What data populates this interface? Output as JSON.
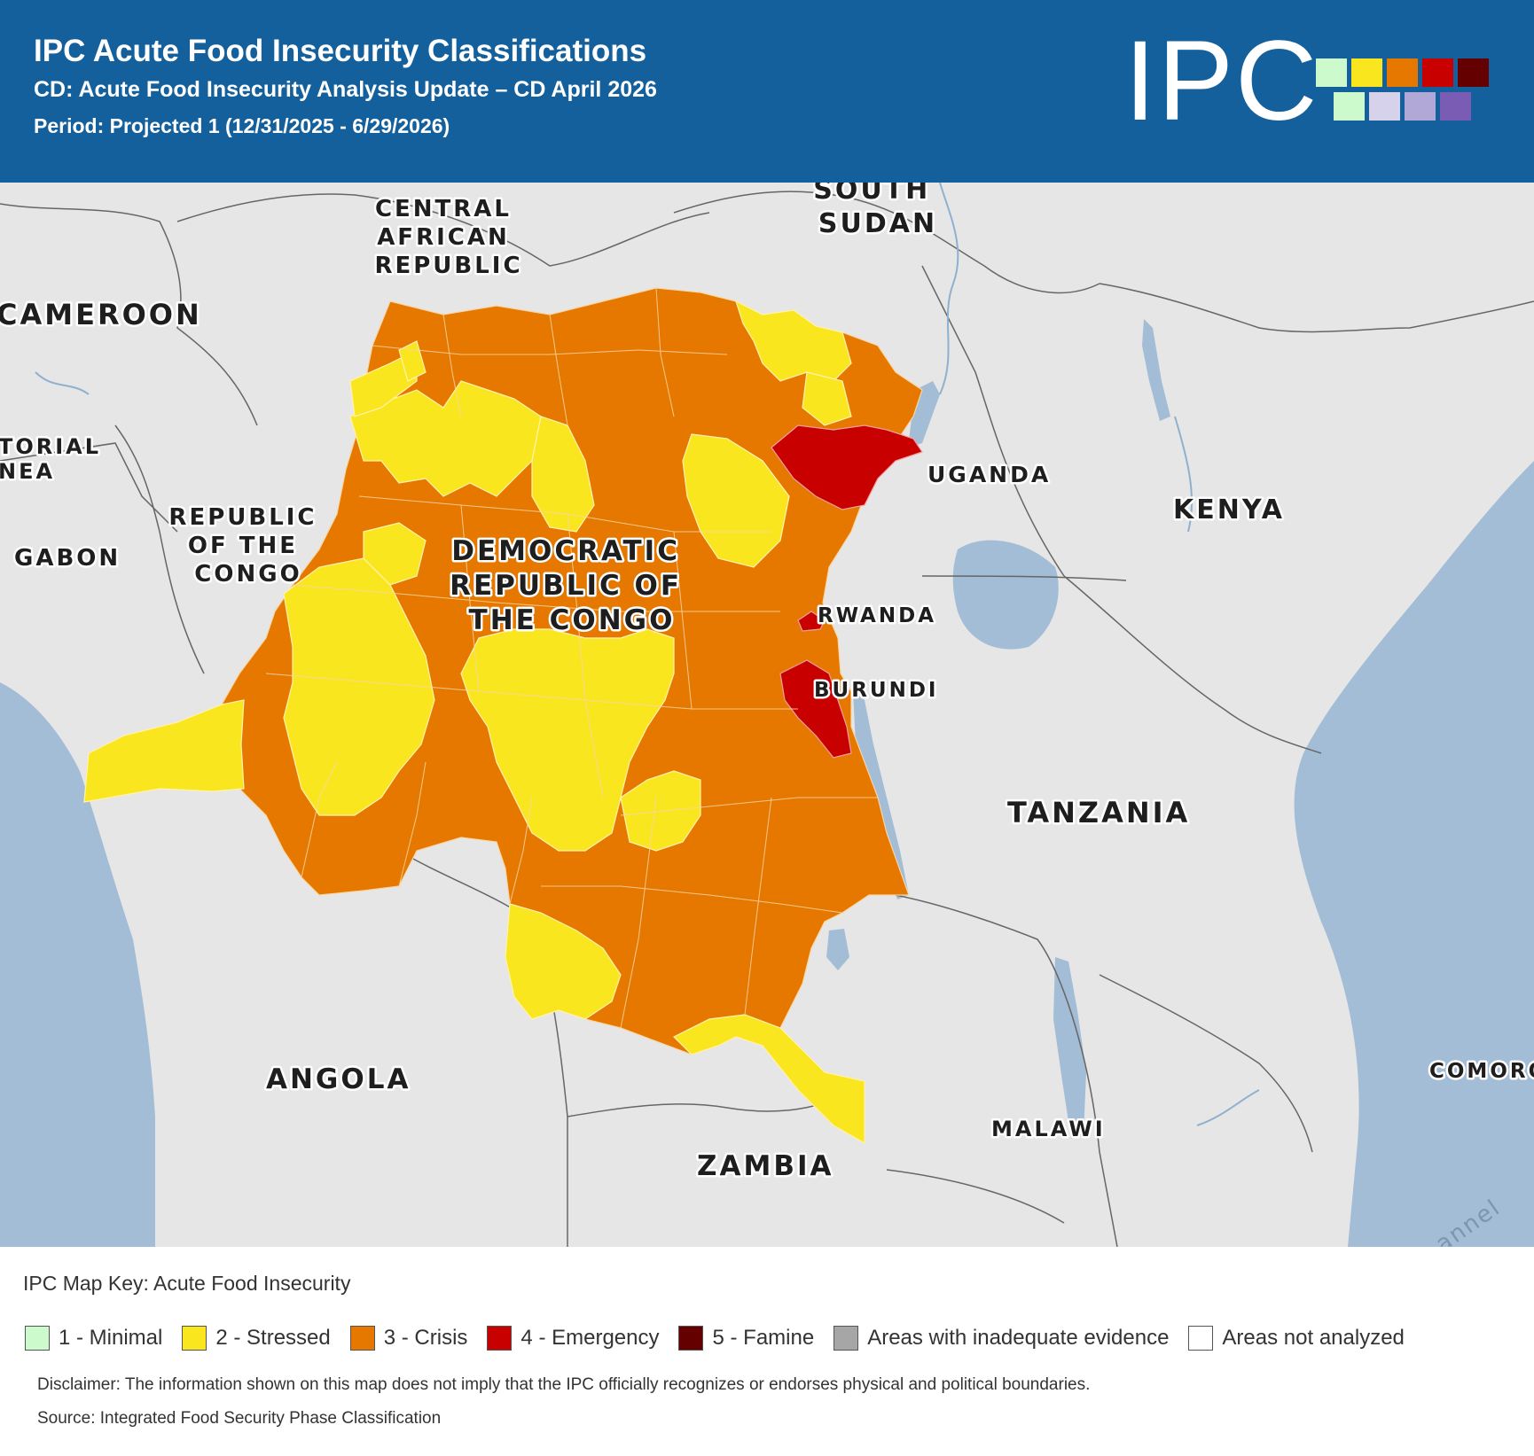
{
  "header": {
    "title": "IPC Acute Food Insecurity Classifications",
    "subtitle": "CD: Acute Food Insecurity Analysis Update – CD April 2026",
    "period": "Period: Projected 1 (12/31/2025 - 6/29/2026)",
    "logo_text": "IPC"
  },
  "colors": {
    "header_bg": "#14609c",
    "phase1": "#cdfacd",
    "phase2": "#fae61e",
    "phase3": "#e67800",
    "phase4": "#c80000",
    "phase5": "#640000",
    "inadequate": "#a6a6a6",
    "not_analyzed": "#ffffff",
    "land": "#e6e6e6",
    "water": "#a3bdd6"
  },
  "map": {
    "labels": {
      "central_african_republic": [
        "CENTRAL",
        "AFRICAN",
        "REPUBLIC"
      ],
      "south_sudan": [
        "SOUTH",
        "SUDAN"
      ],
      "cameroon": "CAMEROON",
      "equatorial_guinea": [
        "TORIAL",
        "NEA"
      ],
      "gabon": "GABON",
      "republic_of_congo": [
        "REPUBLIC",
        "OF THE",
        "CONGO"
      ],
      "drc": [
        "DEMOCRATIC",
        "REPUBLIC OF",
        "THE CONGO"
      ],
      "uganda": "UGANDA",
      "kenya": "KENYA",
      "rwanda": "RWANDA",
      "burundi": "BURUNDI",
      "tanzania": "TANZANIA",
      "angola": "ANGOLA",
      "zambia": "ZAMBIA",
      "malawi": "MALAWI",
      "comoros": "COMORO",
      "channel": "annel"
    }
  },
  "legend": {
    "title": "IPC Map Key: Acute Food Insecurity",
    "items": [
      {
        "label": "1 - Minimal",
        "color": "#cdfacd"
      },
      {
        "label": "2 - Stressed",
        "color": "#fae61e"
      },
      {
        "label": "3 - Crisis",
        "color": "#e67800"
      },
      {
        "label": "4 - Emergency",
        "color": "#c80000"
      },
      {
        "label": "5 - Famine",
        "color": "#640000"
      },
      {
        "label": "Areas with inadequate evidence",
        "color": "#a6a6a6"
      },
      {
        "label": "Areas not analyzed",
        "color": "#ffffff"
      }
    ],
    "disclaimer": "Disclaimer: The information shown on this map does not imply that the IPC officially recognizes or endorses physical and political boundaries.",
    "source": "Source: Integrated Food Security Phase Classification"
  }
}
